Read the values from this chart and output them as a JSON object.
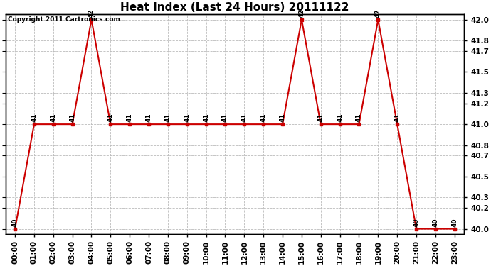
{
  "title": "Heat Index (Last 24 Hours) 20111122",
  "copyright_text": "Copyright 2011 Cartronics.com",
  "hours": [
    0,
    1,
    2,
    3,
    4,
    5,
    6,
    7,
    8,
    9,
    10,
    11,
    12,
    13,
    14,
    15,
    16,
    17,
    18,
    19,
    20,
    21,
    22,
    23
  ],
  "values": [
    40,
    41,
    41,
    41,
    42,
    41,
    41,
    41,
    41,
    41,
    41,
    41,
    41,
    41,
    41,
    42,
    41,
    41,
    41,
    42,
    41,
    40,
    40,
    40
  ],
  "line_color": "#cc0000",
  "marker_color": "#cc0000",
  "bg_color": "#ffffff",
  "grid_color": "#bbbbbb",
  "ylim_min": 39.95,
  "ylim_max": 42.05,
  "yticks": [
    40.0,
    40.2,
    40.3,
    40.5,
    40.7,
    40.8,
    41.0,
    41.2,
    41.3,
    41.5,
    41.7,
    41.8,
    42.0
  ],
  "title_fontsize": 11,
  "annotation_fontsize": 6.5,
  "tick_label_fontsize": 7.5,
  "copyright_fontsize": 6.5
}
